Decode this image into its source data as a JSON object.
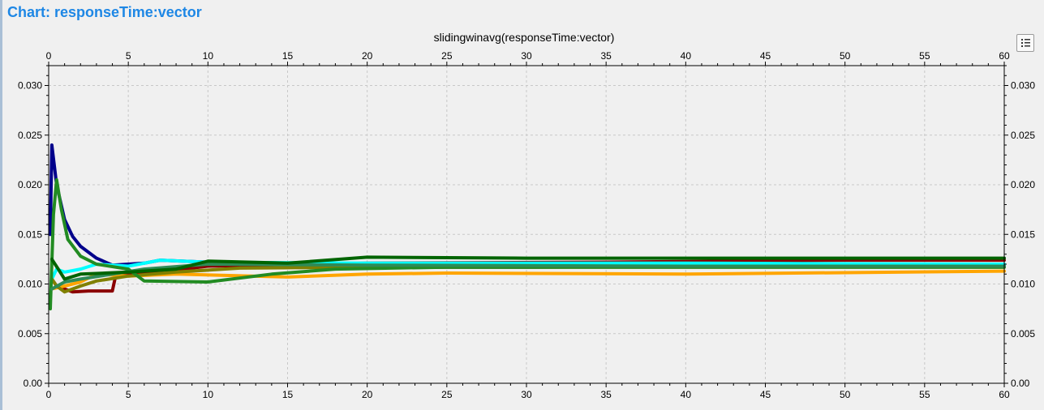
{
  "page": {
    "title": "Chart: responseTime:vector"
  },
  "toolbar": {
    "legend_icon": "legend-list-icon"
  },
  "chart_data": {
    "type": "line",
    "title": "slidingwinavg(responseTime:vector)",
    "xlabel": "",
    "ylabel": "",
    "xlim": [
      0,
      60
    ],
    "ylim": [
      0,
      0.032
    ],
    "x_ticks": [
      "0",
      "5",
      "10",
      "15",
      "20",
      "25",
      "30",
      "35",
      "40",
      "45",
      "50",
      "55",
      "60"
    ],
    "y_ticks": [
      "0.00",
      "0.005",
      "0.010",
      "0.015",
      "0.020",
      "0.025",
      "0.030"
    ],
    "grid": true,
    "mirrored_axes": true,
    "series": [
      {
        "color": "#00008b",
        "points": [
          [
            0.1,
            0.015
          ],
          [
            0.2,
            0.024
          ],
          [
            0.5,
            0.02
          ],
          [
            1,
            0.0165
          ],
          [
            1.5,
            0.0148
          ],
          [
            2,
            0.0138
          ],
          [
            3,
            0.0126
          ],
          [
            4,
            0.0119
          ],
          [
            6,
            0.0121
          ],
          [
            7,
            0.0124
          ],
          [
            10,
            0.0122
          ],
          [
            20,
            0.0117
          ],
          [
            30,
            0.0117
          ],
          [
            45,
            0.0118
          ],
          [
            60,
            0.0118
          ]
        ]
      },
      {
        "color": "#8b0000",
        "points": [
          [
            0.2,
            0.0105
          ],
          [
            0.5,
            0.0098
          ],
          [
            1.5,
            0.0092
          ],
          [
            2.5,
            0.0093
          ],
          [
            4,
            0.0093
          ],
          [
            4.2,
            0.0108
          ],
          [
            7,
            0.0112
          ],
          [
            10,
            0.0118
          ],
          [
            20,
            0.0121
          ],
          [
            35,
            0.0122
          ],
          [
            50,
            0.0124
          ],
          [
            60,
            0.0124
          ]
        ]
      },
      {
        "color": "#00ffff",
        "points": [
          [
            0.2,
            0.0105
          ],
          [
            0.5,
            0.0115
          ],
          [
            1,
            0.0112
          ],
          [
            2,
            0.0115
          ],
          [
            3,
            0.012
          ],
          [
            5,
            0.0118
          ],
          [
            7,
            0.0124
          ],
          [
            10,
            0.0122
          ],
          [
            20,
            0.0121
          ],
          [
            40,
            0.0121
          ],
          [
            60,
            0.012
          ]
        ]
      },
      {
        "color": "#ffa500",
        "points": [
          [
            0.2,
            0.0095
          ],
          [
            1,
            0.0098
          ],
          [
            2,
            0.0102
          ],
          [
            3,
            0.011
          ],
          [
            5,
            0.0108
          ],
          [
            8,
            0.011
          ],
          [
            15,
            0.0107
          ],
          [
            20,
            0.011
          ],
          [
            25,
            0.0111
          ],
          [
            40,
            0.011
          ],
          [
            60,
            0.0113
          ]
        ]
      },
      {
        "color": "#808000",
        "points": [
          [
            0.2,
            0.0105
          ],
          [
            0.5,
            0.0098
          ],
          [
            1,
            0.0092
          ],
          [
            2,
            0.0098
          ],
          [
            3,
            0.0103
          ],
          [
            5,
            0.0108
          ],
          [
            8,
            0.0112
          ],
          [
            12,
            0.0116
          ],
          [
            20,
            0.0117
          ],
          [
            40,
            0.0117
          ],
          [
            60,
            0.0117
          ]
        ]
      },
      {
        "color": "#228b22",
        "points": [
          [
            0.1,
            0.0075
          ],
          [
            0.3,
            0.017
          ],
          [
            0.5,
            0.0205
          ],
          [
            0.8,
            0.0175
          ],
          [
            1.2,
            0.0145
          ],
          [
            2,
            0.0128
          ],
          [
            3,
            0.012
          ],
          [
            5,
            0.0115
          ],
          [
            6,
            0.0103
          ],
          [
            10,
            0.0102
          ],
          [
            14,
            0.011
          ],
          [
            18,
            0.0115
          ],
          [
            25,
            0.0117
          ],
          [
            40,
            0.0117
          ],
          [
            60,
            0.0117
          ]
        ]
      },
      {
        "color": "#2e8b57",
        "points": [
          [
            0.2,
            0.0095
          ],
          [
            1,
            0.0102
          ],
          [
            2,
            0.0105
          ],
          [
            4,
            0.011
          ],
          [
            6,
            0.0115
          ],
          [
            10,
            0.012
          ],
          [
            20,
            0.0119
          ],
          [
            40,
            0.0118
          ],
          [
            60,
            0.0118
          ]
        ]
      },
      {
        "color": "#006400",
        "points": [
          [
            0.2,
            0.0125
          ],
          [
            0.6,
            0.0115
          ],
          [
            1,
            0.0105
          ],
          [
            2,
            0.011
          ],
          [
            5,
            0.0112
          ],
          [
            8,
            0.0115
          ],
          [
            10,
            0.0123
          ],
          [
            15,
            0.0121
          ],
          [
            20,
            0.0127
          ],
          [
            30,
            0.0126
          ],
          [
            45,
            0.0126
          ],
          [
            60,
            0.0126
          ]
        ]
      }
    ]
  }
}
